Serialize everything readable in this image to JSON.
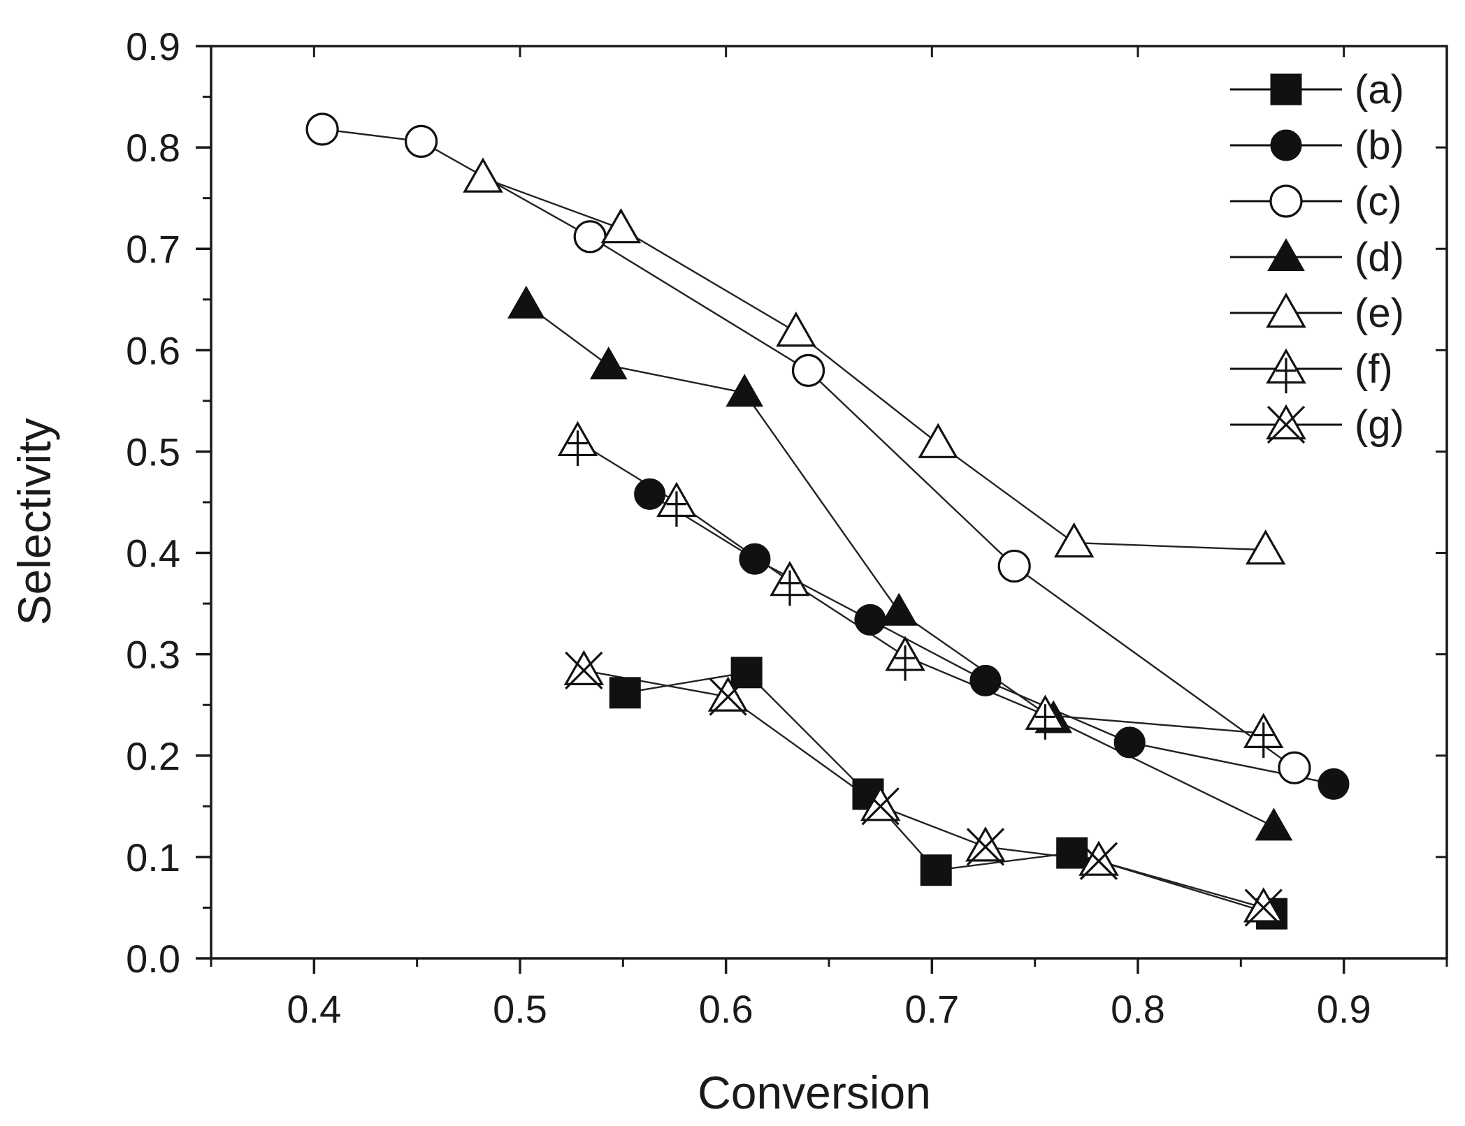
{
  "chart_data": {
    "type": "line",
    "title": "",
    "xlabel": "Conversion",
    "ylabel": "Selectivity",
    "xlim": [
      0.35,
      0.95
    ],
    "ylim": [
      0.0,
      0.9
    ],
    "x_ticks": [
      "0.4",
      "0.5",
      "0.6",
      "0.7",
      "0.8",
      "0.9"
    ],
    "y_ticks": [
      "0.0",
      "0.1",
      "0.2",
      "0.3",
      "0.4",
      "0.5",
      "0.6",
      "0.7",
      "0.8",
      "0.9"
    ],
    "grid": false,
    "legend_position": "top-right",
    "series": [
      {
        "name": "(a)",
        "marker": "filled-square",
        "x": [
          0.551,
          0.61,
          0.669,
          0.702,
          0.768,
          0.865
        ],
        "y": [
          0.262,
          0.282,
          0.162,
          0.087,
          0.104,
          0.044
        ]
      },
      {
        "name": "(b)",
        "marker": "filled-circle",
        "x": [
          0.563,
          0.614,
          0.67,
          0.726,
          0.796,
          0.895
        ],
        "y": [
          0.458,
          0.394,
          0.334,
          0.274,
          0.213,
          0.172
        ]
      },
      {
        "name": "(c)",
        "marker": "open-circle",
        "x": [
          0.404,
          0.452,
          0.534,
          0.64,
          0.74,
          0.876
        ],
        "y": [
          0.818,
          0.806,
          0.712,
          0.58,
          0.387,
          0.188
        ]
      },
      {
        "name": "(d)",
        "marker": "filled-triangle",
        "x": [
          0.503,
          0.543,
          0.609,
          0.684,
          0.759,
          0.866
        ],
        "y": [
          0.645,
          0.585,
          0.558,
          0.342,
          0.236,
          0.13
        ]
      },
      {
        "name": "(e)",
        "marker": "open-triangle",
        "x": [
          0.482,
          0.549,
          0.634,
          0.703,
          0.769,
          0.862
        ],
        "y": [
          0.77,
          0.72,
          0.618,
          0.508,
          0.41,
          0.403
        ]
      },
      {
        "name": "(f)",
        "marker": "open-triangle-cross",
        "x": [
          0.528,
          0.576,
          0.631,
          0.687,
          0.755,
          0.861
        ],
        "y": [
          0.51,
          0.45,
          0.372,
          0.298,
          0.24,
          0.222
        ]
      },
      {
        "name": "(g)",
        "marker": "open-triangle-x",
        "x": [
          0.531,
          0.601,
          0.675,
          0.726,
          0.781,
          0.861
        ],
        "y": [
          0.284,
          0.258,
          0.15,
          0.11,
          0.096,
          0.05
        ]
      }
    ]
  }
}
